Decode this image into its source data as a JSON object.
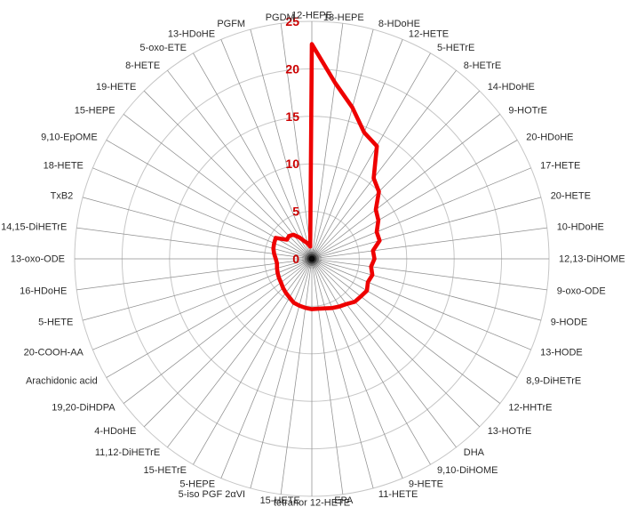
{
  "chart_data": {
    "type": "radar",
    "title": "",
    "categories": [
      "12-HEPE",
      "18-HEPE",
      "8-HDoHE",
      "12-HETE",
      "5-HETrE",
      "8-HETrE",
      "14-HDoHE",
      "9-HOTrE",
      "20-HDoHE",
      "17-HETE",
      "20-HETE",
      "10-HDoHE",
      "12,13-DiHOME",
      "9-oxo-ODE",
      "9-HODE",
      "13-HODE",
      "8,9-DiHETrE",
      "12-HHTrE",
      "13-HOTrE",
      "DHA",
      "9,10-DiHOME",
      "9-HETE",
      "11-HETE",
      "EPA",
      "tetranor 12-HETE",
      "15-HETE",
      "5-iso PGF 2αVI",
      "5-HEPE",
      "15-HETrE",
      "11,12-DiHETrE",
      "4-HDoHE",
      "19,20-DiHDPA",
      "Arachidonic acid",
      "20-COOH-AA",
      "5-HETE",
      "16-HDoHE",
      "13-oxo-ODE",
      "14,15-DiHETrE",
      "TxB2",
      "18-HETE",
      "9,10-EpOME",
      "15-HEPE",
      "19-HETE",
      "8-HETE",
      "5-oxo-ETE",
      "13-HDoHE",
      "PGFM",
      "PGDM"
    ],
    "values": [
      22.6,
      18.7,
      16.5,
      14.4,
      13.7,
      10.7,
      10.0,
      8.5,
      8.1,
      7.4,
      7.4,
      6.5,
      6.6,
      6.3,
      6.6,
      6.4,
      6.7,
      6.5,
      6.4,
      6.0,
      5.8,
      5.6,
      5.4,
      5.3,
      5.3,
      5.2,
      5.1,
      5.0,
      4.7,
      4.5,
      4.3,
      4.1,
      4.0,
      3.9,
      3.8,
      3.7,
      3.8,
      4.0,
      4.2,
      4.3,
      4.4,
      3.3,
      3.4,
      3.2,
      2.6,
      2.0,
      1.7,
      1.3
    ],
    "radial_ticks": [
      "0",
      "5",
      "10",
      "15",
      "20",
      "25"
    ],
    "axis_min": 0,
    "axis_max": 25,
    "grid": "on",
    "legend": "none",
    "direction": "clockwise",
    "start_axis": "top",
    "colors": {
      "series_line": "#ee0000",
      "tick_label": "#cc0000",
      "grid_ring": "#c6c6c6",
      "grid_spoke": "#8f8f8f",
      "axis_label": "#2b2b2b",
      "center_dot": "#000000",
      "background": "#ffffff"
    }
  }
}
